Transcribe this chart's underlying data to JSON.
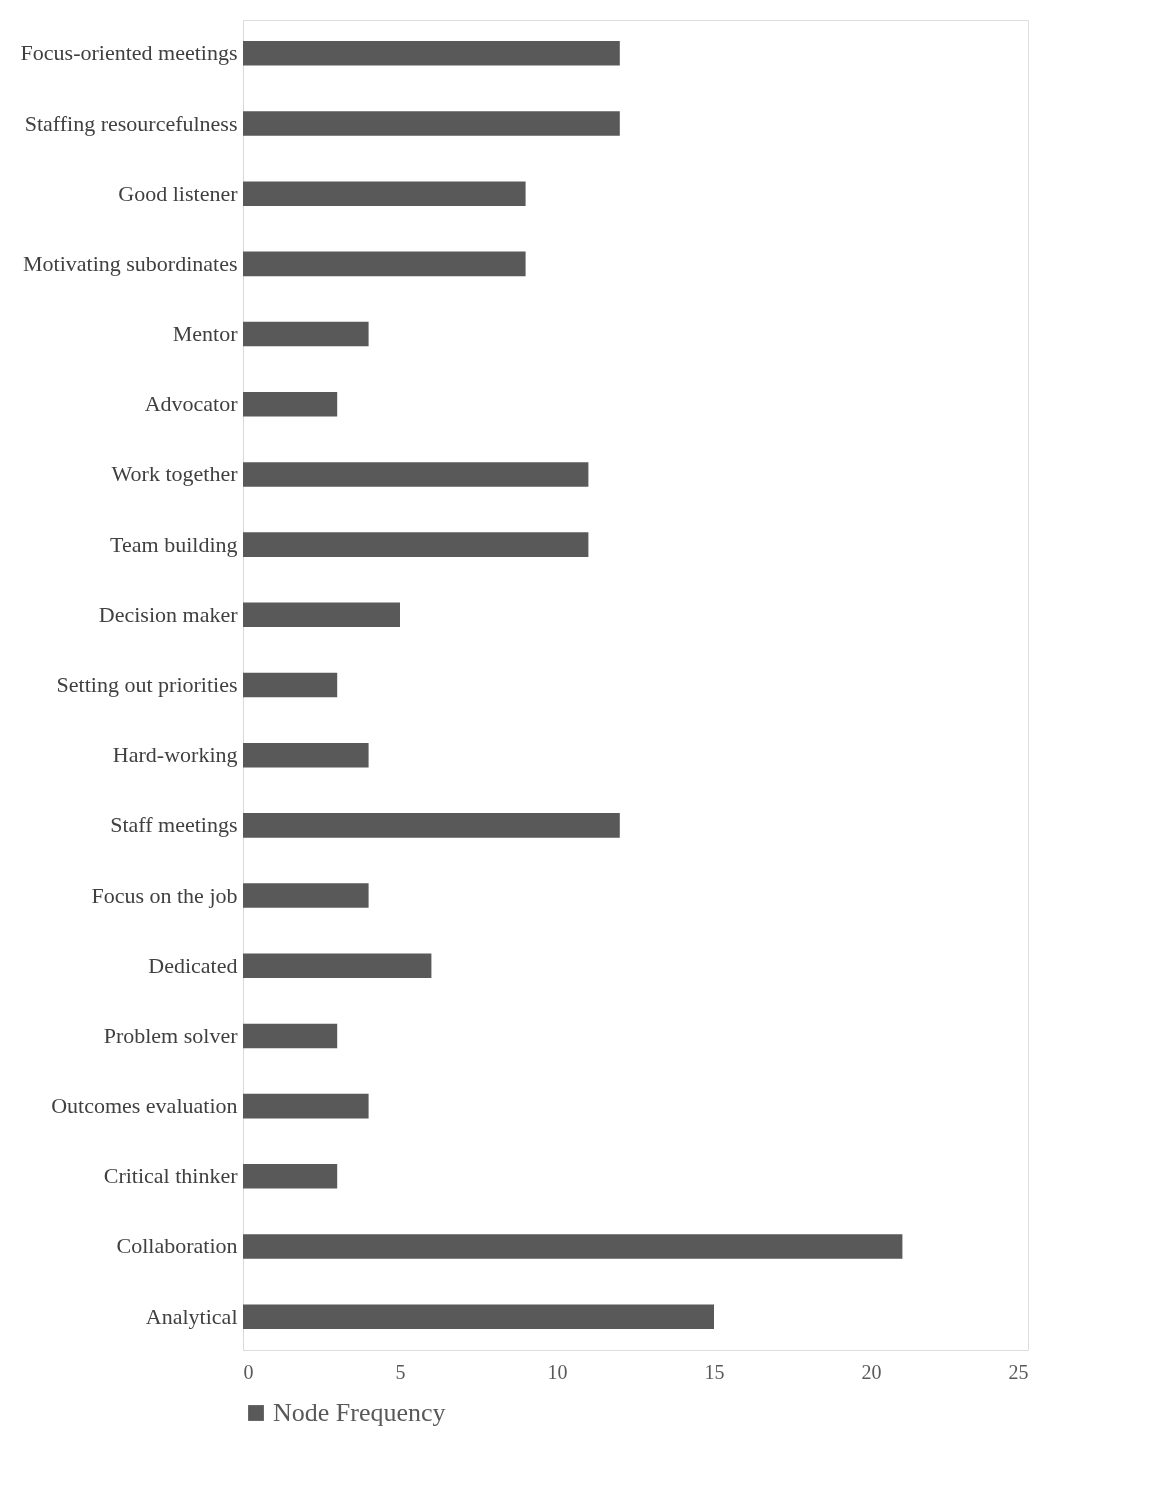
{
  "chart_data": {
    "type": "bar",
    "orientation": "horizontal",
    "categories": [
      "Focus-oriented meetings",
      "Staffing resourcefulness",
      "Good listener",
      "Motivating subordinates",
      "Mentor",
      "Advocator",
      "Work together",
      "Team building",
      "Decision maker",
      "Setting out priorities",
      "Hard-working",
      "Staff meetings",
      "Focus on the job",
      "Dedicated",
      "Problem solver",
      "Outcomes evaluation",
      "Critical thinker",
      "Collaboration",
      "Analytical"
    ],
    "series": [
      {
        "name": "Node Frequency",
        "color": "#595959",
        "values": [
          12,
          12,
          9,
          9,
          4,
          3,
          11,
          11,
          5,
          3,
          4,
          12,
          4,
          6,
          3,
          4,
          3,
          21,
          15
        ]
      }
    ],
    "xlim": [
      0,
      25
    ],
    "xticks": [
      0,
      5,
      10,
      15,
      20,
      25
    ],
    "grid": false,
    "legend": "bottom"
  }
}
